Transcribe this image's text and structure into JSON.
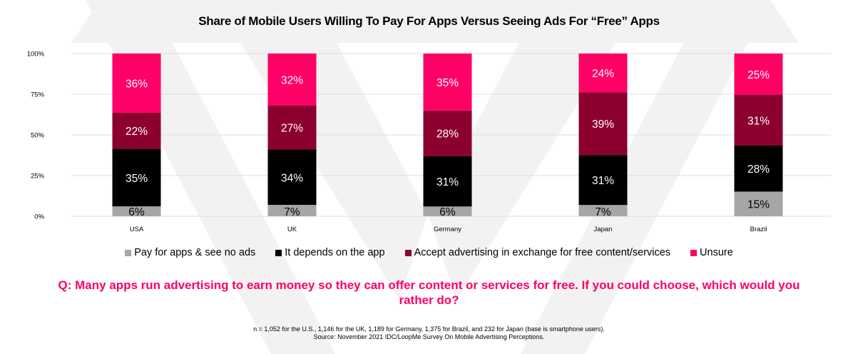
{
  "chart_data": {
    "type": "bar",
    "stacked": true,
    "title": "Share of Mobile Users Willing To Pay For Apps Versus Seeing Ads For “Free” Apps",
    "xlabel": "",
    "ylabel": "",
    "ylim": [
      0,
      100
    ],
    "yticks": [
      "0%",
      "25%",
      "50%",
      "75%",
      "100%"
    ],
    "ytick_values": [
      0,
      25,
      50,
      75,
      100
    ],
    "grid": true,
    "legend_position": "bottom",
    "categories": [
      "USA",
      "UK",
      "Germany",
      "Japan",
      "Brazil"
    ],
    "series": [
      {
        "name": "Pay for apps & see no ads",
        "color": "#a6a6a6",
        "label_color": "#000000",
        "values": [
          6,
          7,
          6,
          7,
          15
        ]
      },
      {
        "name": "It depends on the app",
        "color": "#000000",
        "label_color": "#ffffff",
        "values": [
          35,
          34,
          31,
          31,
          28
        ]
      },
      {
        "name": "Accept advertising in exchange for free content/services",
        "color": "#8c0030",
        "label_color": "#ffffff",
        "values": [
          22,
          27,
          28,
          39,
          31
        ]
      },
      {
        "name": "Unsure",
        "color": "#ff0066",
        "label_color": "#ffffff",
        "values": [
          36,
          32,
          35,
          24,
          25
        ]
      }
    ]
  },
  "question": "Q: Many apps run advertising to earn money so they can offer content or services for free. If you could choose, which would you rather do?",
  "notes": {
    "sample": "n = 1,052 for the U.S., 1,146 for the UK, 1,189 for Germany, 1,375 for Brazil, and 232 for Japan (base is smartphone users).",
    "source": "Source: November 2021 IDC/LoopMe Survey On Mobile Advertising Perceptions."
  },
  "colors": {
    "accent": "#ff0066",
    "grid": "#e3e3e3",
    "watermark": "#f1f1f1"
  }
}
